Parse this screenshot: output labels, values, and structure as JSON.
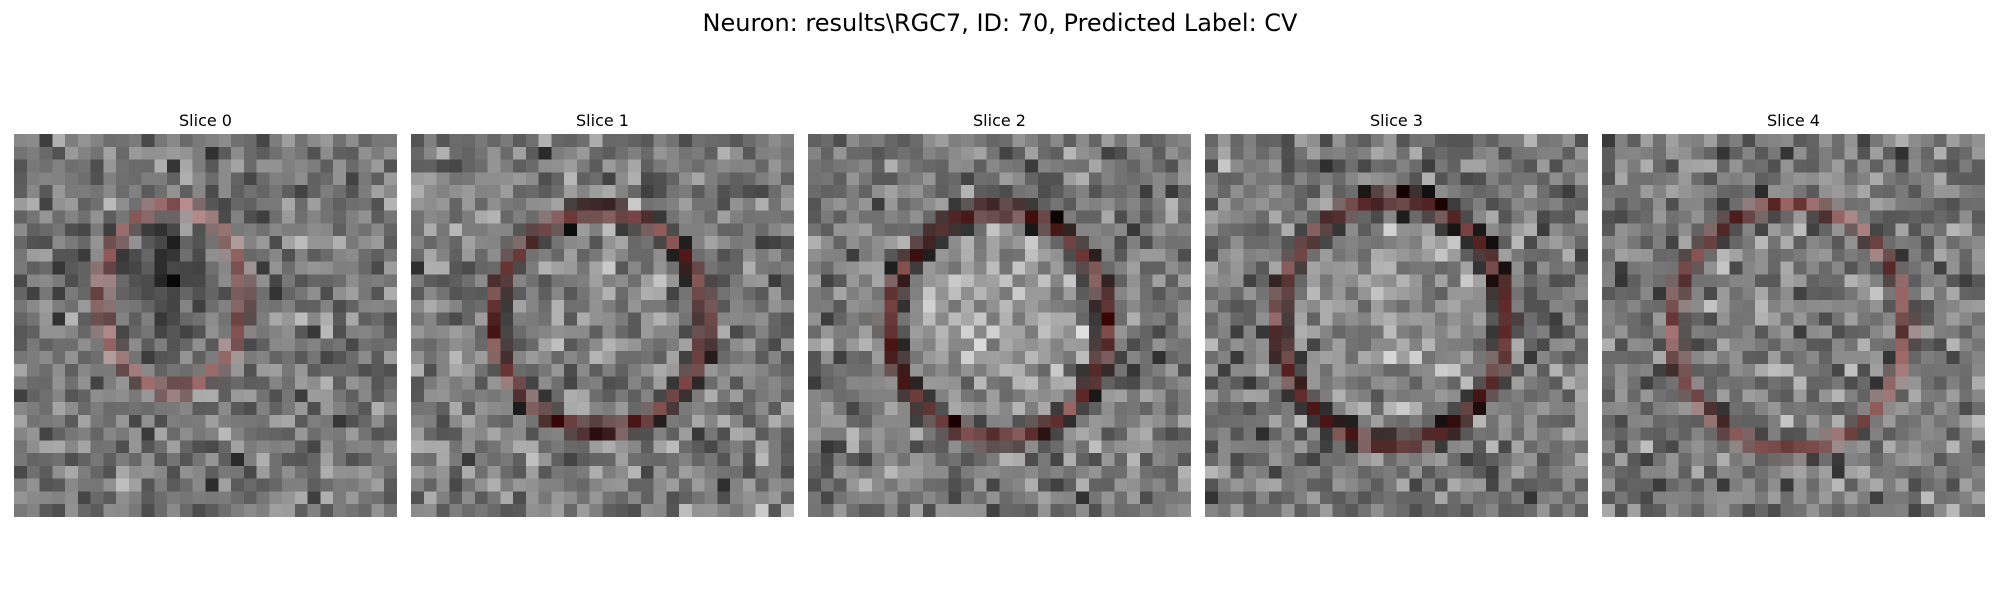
{
  "figure": {
    "title": "Neuron: results\\RGC7, ID: 70, Predicted Label: CV",
    "outline_color": "#ff0000"
  },
  "panels": [
    {
      "title": "Slice 0"
    },
    {
      "title": "Slice 1"
    },
    {
      "title": "Slice 2"
    },
    {
      "title": "Slice 3"
    },
    {
      "title": "Slice 4"
    }
  ]
}
